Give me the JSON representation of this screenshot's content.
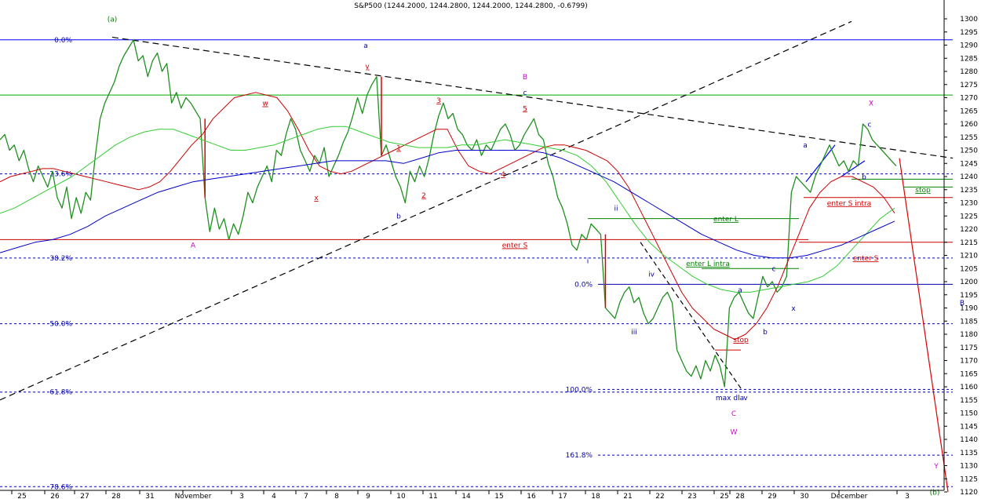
{
  "chart_data": {
    "type": "line",
    "title": "S&P500 (1244.2000, 1244.2800, 1244.2000, 1244.2800, -0.6799)",
    "ylim": [
      1120,
      1300
    ],
    "y_ticks": [
      1120,
      1125,
      1130,
      1135,
      1140,
      1145,
      1150,
      1155,
      1160,
      1165,
      1170,
      1175,
      1180,
      1185,
      1190,
      1195,
      1200,
      1205,
      1210,
      1215,
      1220,
      1225,
      1230,
      1235,
      1240,
      1245,
      1250,
      1255,
      1260,
      1265,
      1270,
      1275,
      1280,
      1285,
      1290,
      1295,
      1300
    ],
    "x_ticks": [
      "25",
      "26",
      "27",
      "28",
      "31",
      "November",
      "3",
      "4",
      "7",
      "8",
      "9",
      "10",
      "11",
      "14",
      "15",
      "16",
      "17",
      "18",
      "21",
      "22",
      "23",
      "25",
      "28",
      "29",
      "30",
      "December",
      "3"
    ],
    "grid": false,
    "series": [
      {
        "key": "price",
        "values": [
          1254,
          1256,
          1250,
          1252,
          1246,
          1250,
          1243,
          1238,
          1244,
          1240,
          1236,
          1242,
          1232,
          1228,
          1236,
          1224,
          1232,
          1226,
          1234,
          1231,
          1248,
          1262,
          1268,
          1272,
          1276,
          1282,
          1286,
          1289,
          1292,
          1284,
          1286,
          1278,
          1284,
          1287,
          1280,
          1283,
          1268,
          1272,
          1266,
          1270,
          1268,
          1265,
          1262,
          1232,
          1219,
          1228,
          1220,
          1224,
          1216,
          1222,
          1218,
          1225,
          1234,
          1230,
          1236,
          1240,
          1244,
          1238,
          1250,
          1248,
          1256,
          1262,
          1258,
          1250,
          1246,
          1242,
          1248,
          1245,
          1251,
          1240,
          1244,
          1248,
          1253,
          1257,
          1263,
          1270,
          1264,
          1271,
          1275,
          1278,
          1248,
          1252,
          1246,
          1240,
          1236,
          1230,
          1242,
          1238,
          1244,
          1240,
          1247,
          1256,
          1263,
          1268,
          1262,
          1264,
          1258,
          1256,
          1252,
          1250,
          1254,
          1248,
          1252,
          1250,
          1254,
          1258,
          1260,
          1256,
          1250,
          1252,
          1256,
          1259,
          1262,
          1256,
          1254,
          1245,
          1240,
          1232,
          1228,
          1222,
          1214,
          1212,
          1218,
          1216,
          1222,
          1220,
          1218,
          1190,
          1188,
          1186,
          1192,
          1196,
          1198,
          1192,
          1194,
          1188,
          1184,
          1186,
          1190,
          1194,
          1196,
          1192,
          1174,
          1170,
          1166,
          1164,
          1168,
          1163,
          1170,
          1166,
          1172,
          1168,
          1160,
          1190,
          1194,
          1196,
          1192,
          1188,
          1186,
          1194,
          1202,
          1198,
          1200,
          1196,
          1198,
          1202,
          1234,
          1240,
          1238,
          1236,
          1234,
          1240,
          1244,
          1248,
          1252,
          1248,
          1244,
          1246,
          1242,
          1246,
          1244,
          1260,
          1258,
          1254,
          1252,
          1250,
          1248,
          1246,
          1244
        ]
      },
      {
        "key": "ma_red",
        "values": [
          1238,
          1240,
          1241,
          1242,
          1243,
          1243,
          1242,
          1241,
          1240,
          1239,
          1238,
          1237,
          1236,
          1235,
          1236,
          1238,
          1242,
          1247,
          1252,
          1256,
          1262,
          1266,
          1270,
          1271,
          1272,
          1271,
          1270,
          1265,
          1258,
          1250,
          1244,
          1242,
          1241,
          1242,
          1244,
          1246,
          1248,
          1250,
          1252,
          1254,
          1256,
          1258,
          1258,
          1250,
          1244,
          1242,
          1241,
          1243,
          1245,
          1247,
          1249,
          1251,
          1252,
          1252,
          1251,
          1250,
          1248,
          1246,
          1242,
          1236,
          1228,
          1220,
          1212,
          1204,
          1196,
          1190,
          1186,
          1182,
          1180,
          1178,
          1180,
          1184,
          1190,
          1198,
          1208,
          1218,
          1228,
          1234,
          1238,
          1240,
          1240,
          1238,
          1236,
          1232,
          1226
        ]
      },
      {
        "key": "ma_green",
        "values": [
          1226,
          1228,
          1231,
          1234,
          1237,
          1240,
          1244,
          1248,
          1252,
          1255,
          1257,
          1258,
          1258,
          1256,
          1254,
          1252,
          1250,
          1250,
          1251,
          1252,
          1254,
          1256,
          1258,
          1259,
          1259,
          1257,
          1255,
          1253,
          1252,
          1251,
          1251,
          1251,
          1252,
          1252,
          1253,
          1254,
          1253,
          1252,
          1251,
          1250,
          1248,
          1244,
          1238,
          1230,
          1222,
          1215,
          1210,
          1206,
          1202,
          1199,
          1197,
          1196,
          1196,
          1197,
          1198,
          1199,
          1200,
          1202,
          1206,
          1212,
          1218,
          1224,
          1228
        ]
      },
      {
        "key": "ma_blue",
        "values": [
          1211,
          1213,
          1215,
          1216,
          1218,
          1221,
          1225,
          1228,
          1231,
          1234,
          1236,
          1238,
          1239,
          1240,
          1241,
          1242,
          1243,
          1244,
          1245,
          1246,
          1246,
          1246,
          1246,
          1245,
          1247,
          1249,
          1250,
          1250,
          1250,
          1250,
          1250,
          1249,
          1247,
          1244,
          1241,
          1238,
          1234,
          1230,
          1226,
          1222,
          1218,
          1215,
          1212,
          1210,
          1209,
          1209,
          1210,
          1212,
          1214,
          1217,
          1220,
          1223
        ]
      }
    ]
  },
  "levels": {
    "fib_left": [
      {
        "label": "0.0%",
        "value": 1292,
        "color": "#0000ff"
      },
      {
        "label": "23.6%",
        "value": 1241,
        "color": "#0000aa"
      },
      {
        "label": "38.2%",
        "value": 1209,
        "color": "#0000aa"
      },
      {
        "label": "50.0%",
        "value": 1184,
        "color": "#0000aa"
      },
      {
        "label": "61.8%",
        "value": 1158,
        "color": "#0000aa"
      },
      {
        "label": "78.6%",
        "value": 1122,
        "color": "#0000aa"
      }
    ],
    "fib_right": [
      {
        "label": "0.0%",
        "value": 1199,
        "color": "#0000aa"
      },
      {
        "label": "100.0%",
        "value": 1159,
        "color": "#0000aa"
      },
      {
        "label": "161.8%",
        "value": 1134,
        "color": "#0000aa"
      }
    ]
  },
  "annotations": [
    {
      "text": "(a)",
      "x": 143,
      "v": 1299,
      "color": "#008000"
    },
    {
      "text": "A",
      "x": 246,
      "v": 1213,
      "color": "#cc00cc"
    },
    {
      "text": "w",
      "x": 338,
      "v": 1267,
      "color": "#cc0000",
      "u": true
    },
    {
      "text": "x",
      "x": 403,
      "v": 1231,
      "color": "#cc0000",
      "u": true
    },
    {
      "text": "a",
      "x": 466,
      "v": 1289,
      "color": "#0000aa"
    },
    {
      "text": "y",
      "x": 468,
      "v": 1281,
      "color": "#cc0000",
      "u": true
    },
    {
      "text": "b",
      "x": 508,
      "v": 1224,
      "color": "#0000aa"
    },
    {
      "text": "1",
      "x": 508,
      "v": 1250,
      "color": "#cc0000",
      "u": true
    },
    {
      "text": "2",
      "x": 540,
      "v": 1232,
      "color": "#cc0000",
      "u": true
    },
    {
      "text": "3",
      "x": 559,
      "v": 1268,
      "color": "#cc0000",
      "u": true
    },
    {
      "text": "4",
      "x": 641,
      "v": 1240,
      "color": "#cc0000",
      "u": true
    },
    {
      "text": "B",
      "x": 669,
      "v": 1277,
      "color": "#cc00cc"
    },
    {
      "text": "c",
      "x": 669,
      "v": 1271,
      "color": "#0000aa"
    },
    {
      "text": "5",
      "x": 669,
      "v": 1265,
      "color": "#cc0000",
      "u": true
    },
    {
      "text": "ii",
      "x": 785,
      "v": 1227,
      "color": "#0000aa"
    },
    {
      "text": "i",
      "x": 749,
      "v": 1207,
      "color": "#0000aa"
    },
    {
      "text": "iv",
      "x": 830,
      "v": 1202,
      "color": "#0000aa"
    },
    {
      "text": "iii",
      "x": 808,
      "v": 1180,
      "color": "#0000aa"
    },
    {
      "text": "v",
      "x": 950,
      "v": 1155,
      "color": "#0000aa"
    },
    {
      "text": "max dla",
      "x": 930,
      "v": 1155,
      "color": "#0000aa"
    },
    {
      "text": "C",
      "x": 935,
      "v": 1149,
      "color": "#cc00cc"
    },
    {
      "text": "W",
      "x": 935,
      "v": 1142,
      "color": "#cc00cc"
    },
    {
      "text": "a",
      "x": 943,
      "v": 1196,
      "color": "#0000aa"
    },
    {
      "text": "b",
      "x": 975,
      "v": 1180,
      "color": "#0000aa"
    },
    {
      "text": "c",
      "x": 986,
      "v": 1204,
      "color": "#0000aa"
    },
    {
      "text": "x",
      "x": 1011,
      "v": 1189,
      "color": "#0000aa"
    },
    {
      "text": "a",
      "x": 1026,
      "v": 1251,
      "color": "#0000aa"
    },
    {
      "text": "b",
      "x": 1101,
      "v": 1239,
      "color": "#0000aa"
    },
    {
      "text": "X",
      "x": 1110,
      "v": 1267,
      "color": "#cc00cc"
    },
    {
      "text": "c",
      "x": 1108,
      "v": 1259,
      "color": "#0000aa"
    },
    {
      "text": "B",
      "x": 1226,
      "v": 1191,
      "color": "#0000aa",
      "size": 12
    },
    {
      "text": "Y",
      "x": 1193,
      "v": 1129,
      "color": "#cc00cc"
    },
    {
      "text": "(b)",
      "x": 1191,
      "v": 1119,
      "color": "#008000"
    },
    {
      "text": "enter S",
      "x": 656,
      "v": 1213,
      "color": "#cc0000",
      "u": true
    },
    {
      "text": "enter L",
      "x": 925,
      "v": 1223,
      "color": "#008000",
      "u": true
    },
    {
      "text": "enter L intra",
      "x": 902,
      "v": 1206,
      "color": "#008000",
      "u": true
    },
    {
      "text": "stop",
      "x": 944,
      "v": 1177,
      "color": "#cc0000",
      "u": true
    },
    {
      "text": "enter S intra",
      "x": 1082,
      "v": 1229,
      "color": "#cc0000",
      "u": true
    },
    {
      "text": "enter S",
      "x": 1103,
      "v": 1208,
      "color": "#cc0000",
      "u": true
    },
    {
      "text": "stop",
      "x": 1176,
      "v": 1234,
      "color": "#008000",
      "u": true
    }
  ]
}
